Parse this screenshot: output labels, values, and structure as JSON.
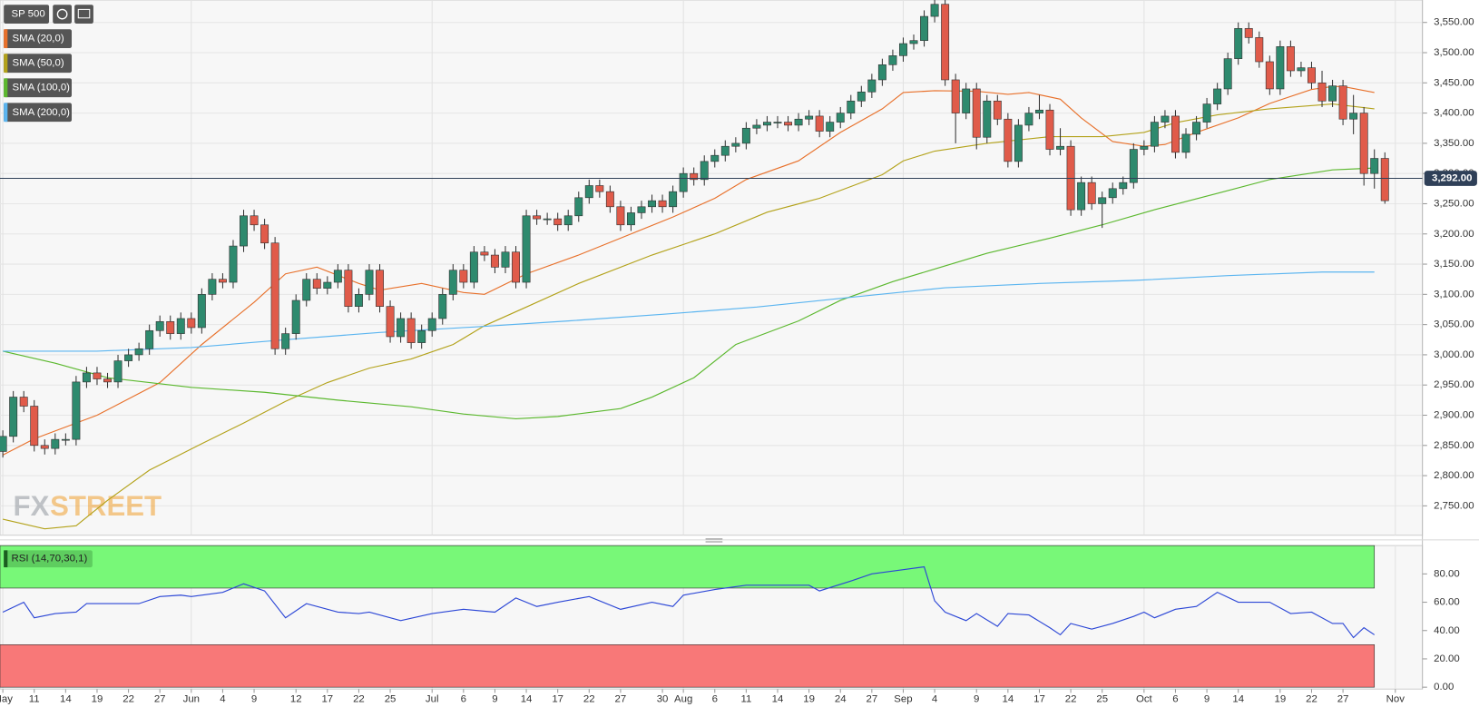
{
  "chart_data": [
    {
      "type": "candlestick",
      "title": "SP 500",
      "watermark": [
        "FX",
        "STREET"
      ],
      "ylim": [
        2703,
        3584
      ],
      "yticks": [
        {
          "value": 2750,
          "label": "2,750.00"
        },
        {
          "value": 2800,
          "label": "2,800.00"
        },
        {
          "value": 2850,
          "label": "2,850.00"
        },
        {
          "value": 2900,
          "label": "2,900.00"
        },
        {
          "value": 2950,
          "label": "2,950.00"
        },
        {
          "value": 3000,
          "label": "3,000.00"
        },
        {
          "value": 3050,
          "label": "3,050.00"
        },
        {
          "value": 3100,
          "label": "3,100.00"
        },
        {
          "value": 3150,
          "label": "3,150.00"
        },
        {
          "value": 3200,
          "label": "3,200.00"
        },
        {
          "value": 3250,
          "label": "3,250.00"
        },
        {
          "value": 3300,
          "label": "3,300.00"
        },
        {
          "value": 3350,
          "label": "3,350.00"
        },
        {
          "value": 3400,
          "label": "3,400.00"
        },
        {
          "value": 3450,
          "label": "3,450.00"
        },
        {
          "value": 3500,
          "label": "3,500.00"
        },
        {
          "value": 3550,
          "label": "3,550.00"
        }
      ],
      "grid": true,
      "up_color": "#2e8a6e",
      "down_color": "#e05b4a",
      "current_price": {
        "value": 3292,
        "label": "3,292.00"
      },
      "open": [
        2840,
        2865,
        2930,
        2915,
        2850,
        2845,
        2860,
        2860,
        2955,
        2970,
        2960,
        2955,
        2990,
        3000,
        3010,
        3040,
        3055,
        3035,
        3060,
        3045,
        3100,
        3125,
        3120,
        3180,
        3230,
        3215,
        3185,
        3010,
        3035,
        3090,
        3125,
        3110,
        3120,
        3140,
        3080,
        3100,
        3140,
        3080,
        3030,
        3060,
        3020,
        3040,
        3060,
        3100,
        3140,
        3120,
        3170,
        3165,
        3145,
        3170,
        3120,
        3230,
        3225,
        3225,
        3215,
        3230,
        3260,
        3280,
        3270,
        3245,
        3215,
        3235,
        3245,
        3255,
        3245,
        3270,
        3300,
        3290,
        3320,
        3330,
        3345,
        3350,
        3375,
        3380,
        3385,
        3385,
        3380,
        3390,
        3395,
        3370,
        3385,
        3400,
        3420,
        3435,
        3455,
        3480,
        3495,
        3515,
        3520,
        3560,
        3580,
        3455,
        3400,
        3440,
        3360,
        3420,
        3390,
        3320,
        3380,
        3400,
        3405,
        3340,
        3345,
        3240,
        3285,
        3250,
        3260,
        3275,
        3285,
        3340,
        3345,
        3385,
        3395,
        3335,
        3365,
        3385,
        3415,
        3440,
        3490,
        3540,
        3525,
        3485,
        3440,
        3510,
        3470,
        3475,
        3450,
        3420,
        3445,
        3390,
        3400,
        3300,
        3325
      ],
      "high": [
        2875,
        2940,
        2940,
        2925,
        2860,
        2870,
        2870,
        2965,
        2980,
        2980,
        2970,
        3000,
        3010,
        3020,
        3050,
        3065,
        3065,
        3070,
        3070,
        3110,
        3135,
        3135,
        3190,
        3240,
        3240,
        3225,
        3195,
        3045,
        3100,
        3135,
        3135,
        3130,
        3150,
        3150,
        3110,
        3150,
        3150,
        3090,
        3070,
        3070,
        3050,
        3070,
        3110,
        3150,
        3150,
        3180,
        3180,
        3175,
        3180,
        3180,
        3240,
        3240,
        3235,
        3235,
        3240,
        3270,
        3290,
        3290,
        3280,
        3255,
        3245,
        3255,
        3265,
        3265,
        3280,
        3310,
        3310,
        3330,
        3340,
        3355,
        3360,
        3385,
        3390,
        3395,
        3395,
        3395,
        3400,
        3405,
        3405,
        3395,
        3410,
        3430,
        3445,
        3465,
        3490,
        3505,
        3525,
        3530,
        3570,
        3590,
        3590,
        3465,
        3450,
        3450,
        3430,
        3430,
        3400,
        3390,
        3410,
        3430,
        3415,
        3375,
        3355,
        3295,
        3295,
        3270,
        3285,
        3295,
        3350,
        3355,
        3395,
        3405,
        3405,
        3375,
        3395,
        3425,
        3450,
        3500,
        3550,
        3550,
        3535,
        3495,
        3520,
        3520,
        3485,
        3485,
        3470,
        3455,
        3455,
        3430,
        3410,
        3340,
        3335
      ],
      "low": [
        2830,
        2855,
        2905,
        2840,
        2835,
        2835,
        2850,
        2850,
        2945,
        2950,
        2945,
        2945,
        2980,
        2990,
        3000,
        3030,
        3025,
        3025,
        3035,
        3035,
        3090,
        3110,
        3110,
        3170,
        3205,
        3175,
        3000,
        3000,
        3025,
        3080,
        3100,
        3100,
        3110,
        3070,
        3070,
        3090,
        3070,
        3020,
        3020,
        3010,
        3010,
        3030,
        3050,
        3090,
        3110,
        3110,
        3155,
        3135,
        3135,
        3110,
        3110,
        3215,
        3215,
        3205,
        3205,
        3220,
        3250,
        3260,
        3235,
        3205,
        3205,
        3225,
        3235,
        3235,
        3235,
        3260,
        3280,
        3280,
        3310,
        3320,
        3335,
        3340,
        3365,
        3370,
        3375,
        3370,
        3370,
        3380,
        3360,
        3360,
        3375,
        3390,
        3410,
        3425,
        3445,
        3470,
        3485,
        3505,
        3510,
        3550,
        3445,
        3350,
        3390,
        3340,
        3350,
        3380,
        3310,
        3310,
        3370,
        3390,
        3330,
        3330,
        3230,
        3230,
        3240,
        3210,
        3250,
        3265,
        3275,
        3330,
        3335,
        3375,
        3325,
        3325,
        3355,
        3375,
        3405,
        3430,
        3480,
        3515,
        3475,
        3430,
        3430,
        3460,
        3460,
        3440,
        3410,
        3410,
        3380,
        3365,
        3280,
        3275,
        3250
      ],
      "close": [
        2865,
        2930,
        2915,
        2850,
        2845,
        2860,
        2860,
        2955,
        2970,
        2960,
        2955,
        2990,
        3000,
        3010,
        3040,
        3055,
        3035,
        3060,
        3045,
        3100,
        3125,
        3120,
        3180,
        3230,
        3215,
        3185,
        3010,
        3035,
        3090,
        3125,
        3110,
        3120,
        3140,
        3080,
        3100,
        3140,
        3080,
        3030,
        3060,
        3020,
        3040,
        3060,
        3100,
        3140,
        3120,
        3170,
        3165,
        3145,
        3170,
        3120,
        3230,
        3225,
        3225,
        3215,
        3230,
        3260,
        3280,
        3270,
        3245,
        3215,
        3235,
        3245,
        3255,
        3245,
        3270,
        3300,
        3290,
        3320,
        3330,
        3345,
        3350,
        3375,
        3380,
        3385,
        3385,
        3380,
        3390,
        3395,
        3370,
        3385,
        3400,
        3420,
        3435,
        3455,
        3480,
        3495,
        3515,
        3520,
        3560,
        3580,
        3455,
        3400,
        3440,
        3360,
        3420,
        3390,
        3320,
        3380,
        3400,
        3405,
        3340,
        3345,
        3240,
        3285,
        3250,
        3260,
        3275,
        3285,
        3340,
        3345,
        3385,
        3395,
        3335,
        3365,
        3385,
        3415,
        3440,
        3490,
        3540,
        3525,
        3485,
        3440,
        3510,
        3470,
        3475,
        3450,
        3420,
        3445,
        3390,
        3400,
        3300,
        3325,
        3255
      ],
      "series": [
        {
          "name": "SMA (20,0)",
          "color": "#e8702a",
          "x": [
            0,
            3,
            9,
            15,
            19,
            24,
            27,
            30,
            34,
            36,
            40,
            44,
            46,
            50,
            55,
            60,
            64,
            68,
            71,
            76,
            80,
            84,
            86,
            89,
            93,
            96,
            98,
            101,
            103,
            106,
            109,
            111,
            114,
            118,
            121,
            125,
            127,
            128,
            131
          ],
          "values": [
            2834,
            2861,
            2900,
            2954,
            3017,
            3087,
            3134,
            3145,
            3118,
            3107,
            3118,
            3103,
            3100,
            3134,
            3165,
            3200,
            3228,
            3259,
            3290,
            3321,
            3368,
            3407,
            3434,
            3437,
            3436,
            3431,
            3434,
            3423,
            3392,
            3353,
            3345,
            3348,
            3368,
            3392,
            3416,
            3439,
            3444,
            3444,
            3434
          ]
        },
        {
          "name": "SMA (50,0)",
          "color": "#b3a21a",
          "x": [
            0,
            4,
            7,
            10,
            14,
            19,
            23,
            27,
            31,
            35,
            39,
            43,
            46,
            50,
            55,
            62,
            68,
            73,
            78,
            84,
            86,
            89,
            94,
            100,
            105,
            109,
            112,
            116,
            121,
            127,
            131
          ],
          "values": [
            2728,
            2712,
            2717,
            2759,
            2809,
            2853,
            2887,
            2923,
            2954,
            2978,
            2993,
            3017,
            3048,
            3079,
            3118,
            3165,
            3200,
            3236,
            3259,
            3298,
            3321,
            3337,
            3350,
            3361,
            3361,
            3368,
            3384,
            3397,
            3407,
            3415,
            3407
          ]
        },
        {
          "name": "SMA (100,0)",
          "color": "#5bb82e",
          "x": [
            0,
            5,
            10,
            18,
            25,
            32,
            39,
            44,
            49,
            53,
            59,
            62,
            66,
            70,
            76,
            80,
            85,
            89,
            94,
            100,
            105,
            110,
            116,
            121,
            127,
            131
          ],
          "values": [
            3006,
            2986,
            2962,
            2946,
            2938,
            2925,
            2914,
            2902,
            2894,
            2898,
            2911,
            2930,
            2962,
            3017,
            3056,
            3090,
            3121,
            3142,
            3168,
            3193,
            3215,
            3240,
            3267,
            3290,
            3306,
            3309
          ]
        },
        {
          "name": "SMA (200,0)",
          "color": "#5bb5f0",
          "x": [
            0,
            9,
            18,
            27,
            36,
            45,
            54,
            63,
            72,
            81,
            90,
            99,
            108,
            117,
            126,
            131
          ],
          "values": [
            3006,
            3006,
            3012,
            3025,
            3037,
            3046,
            3056,
            3067,
            3079,
            3095,
            3111,
            3118,
            3123,
            3131,
            3137,
            3137
          ]
        }
      ]
    },
    {
      "type": "line",
      "title": "RSI (14,70,30,1)",
      "color": "#2b46d6",
      "ylim": [
        0,
        100
      ],
      "yticks": [
        {
          "value": 0,
          "label": "0.00"
        },
        {
          "value": 20,
          "label": "20.00"
        },
        {
          "value": 40,
          "label": "40.00"
        },
        {
          "value": 60,
          "label": "60.00"
        },
        {
          "value": 80,
          "label": "80.00"
        }
      ],
      "overbought": 70,
      "oversold": 30,
      "x": [
        0,
        2,
        3,
        5,
        7,
        8,
        10,
        13,
        15,
        17,
        18,
        21,
        23,
        25,
        27,
        29,
        32,
        34,
        35,
        38,
        41,
        44,
        47,
        49,
        51,
        53,
        56,
        59,
        62,
        64,
        65,
        68,
        71,
        75,
        77,
        78,
        81,
        83,
        86,
        88,
        89,
        90,
        92,
        93,
        95,
        96,
        98,
        100,
        101,
        102,
        104,
        106,
        108,
        109,
        110,
        112,
        114,
        116,
        118,
        121,
        123,
        125,
        127,
        128,
        129,
        130,
        131
      ],
      "values": [
        53,
        60,
        49,
        52,
        53,
        59,
        59,
        59,
        64,
        65,
        64,
        67,
        73,
        68,
        49,
        59,
        53,
        52,
        53,
        47,
        52,
        55,
        53,
        63,
        57,
        60,
        64,
        55,
        60,
        57,
        65,
        69,
        72,
        72,
        72,
        68,
        75,
        80,
        83,
        85,
        61,
        53,
        47,
        52,
        43,
        52,
        51,
        42,
        37,
        45,
        41,
        45,
        50,
        53,
        49,
        55,
        57,
        67,
        60,
        60,
        52,
        53,
        45,
        45,
        35,
        42,
        37
      ],
      "xticks": [
        {
          "value": 0,
          "label": "May"
        },
        {
          "value": 3,
          "label": "11"
        },
        {
          "value": 6,
          "label": "14"
        },
        {
          "value": 9,
          "label": "19"
        },
        {
          "value": 12,
          "label": "22"
        },
        {
          "value": 15,
          "label": "27"
        },
        {
          "value": 18,
          "label": "Jun"
        },
        {
          "value": 21,
          "label": "4"
        },
        {
          "value": 24,
          "label": "9"
        },
        {
          "value": 28,
          "label": "12"
        },
        {
          "value": 31,
          "label": "17"
        },
        {
          "value": 34,
          "label": "22"
        },
        {
          "value": 37,
          "label": "25"
        },
        {
          "value": 41,
          "label": "Jul"
        },
        {
          "value": 44,
          "label": "6"
        },
        {
          "value": 47,
          "label": "9"
        },
        {
          "value": 50,
          "label": "14"
        },
        {
          "value": 53,
          "label": "17"
        },
        {
          "value": 56,
          "label": "22"
        },
        {
          "value": 59,
          "label": "27"
        },
        {
          "value": 63,
          "label": "30"
        },
        {
          "value": 65,
          "label": "Aug"
        },
        {
          "value": 68,
          "label": "6"
        },
        {
          "value": 71,
          "label": "11"
        },
        {
          "value": 74,
          "label": "14"
        },
        {
          "value": 77,
          "label": "19"
        },
        {
          "value": 80,
          "label": "24"
        },
        {
          "value": 83,
          "label": "27"
        },
        {
          "value": 86,
          "label": "Sep"
        },
        {
          "value": 89,
          "label": "4"
        },
        {
          "value": 93,
          "label": "9"
        },
        {
          "value": 96,
          "label": "14"
        },
        {
          "value": 99,
          "label": "17"
        },
        {
          "value": 102,
          "label": "22"
        },
        {
          "value": 105,
          "label": "25"
        },
        {
          "value": 109,
          "label": "Oct"
        },
        {
          "value": 112,
          "label": "6"
        },
        {
          "value": 115,
          "label": "9"
        },
        {
          "value": 118,
          "label": "14"
        },
        {
          "value": 122,
          "label": "19"
        },
        {
          "value": 125,
          "label": "22"
        },
        {
          "value": 128,
          "label": "27"
        },
        {
          "value": 133,
          "label": "Nov"
        }
      ]
    }
  ]
}
